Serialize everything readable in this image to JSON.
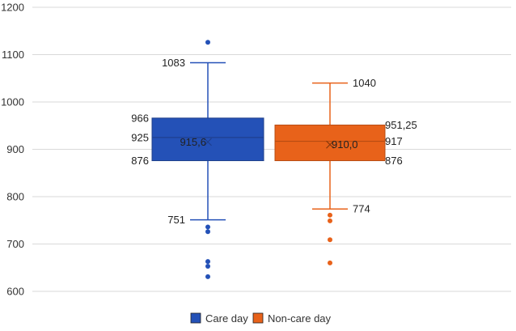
{
  "chart_data": {
    "type": "box",
    "y_axis": {
      "min": 600,
      "max": 1200,
      "ticks": [
        600,
        700,
        800,
        900,
        1000,
        1100,
        1200
      ]
    },
    "grid": "horizontal",
    "legend_position": "bottom",
    "series": [
      {
        "name": "Care day",
        "color": "#2451b7",
        "whisker_high": 1083,
        "q3": 966,
        "median": 925,
        "mean": 915.6,
        "q1": 876,
        "whisker_low": 751,
        "outliers": [
          1126,
          736,
          726,
          663,
          653,
          631
        ],
        "labels": {
          "whisker_high": "1083",
          "q3": "966",
          "median": "925",
          "mean": "915,6",
          "q1": "876",
          "whisker_low": "751"
        }
      },
      {
        "name": "Non-care day",
        "color": "#e8621a",
        "whisker_high": 1040,
        "q3": 951.25,
        "median": 917,
        "mean": 910.0,
        "q1": 876,
        "whisker_low": 774,
        "outliers": [
          761,
          749,
          709,
          660
        ],
        "labels": {
          "whisker_high": "1040",
          "q3": "951,25",
          "median": "917",
          "mean": "910,0",
          "q1": "876",
          "whisker_low": "774"
        }
      }
    ]
  }
}
